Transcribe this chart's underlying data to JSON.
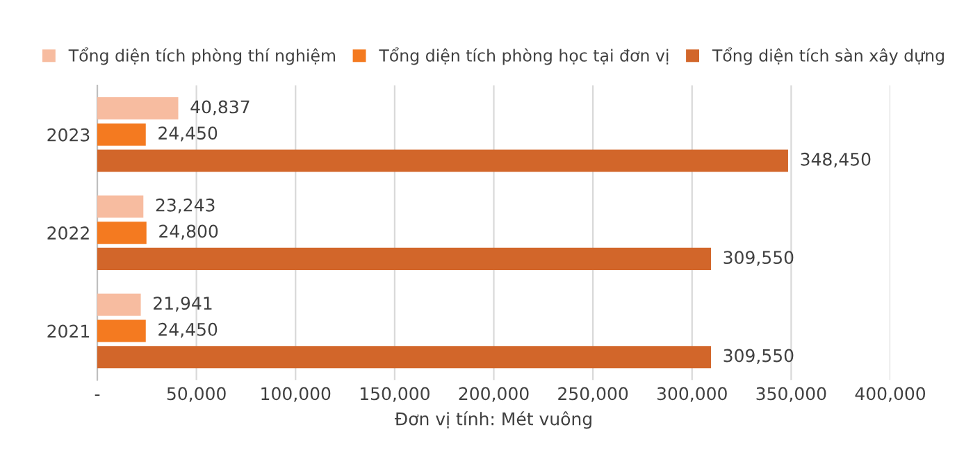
{
  "chart_data": {
    "type": "bar",
    "orientation": "horizontal",
    "xlabel": "Đơn vị tính: Mét vuông",
    "categories": [
      "2023",
      "2022",
      "2021"
    ],
    "series": [
      {
        "name": "Tổng diện tích phòng thí nghiệm",
        "color": "#f7bca0",
        "values": [
          40837,
          23243,
          21941
        ],
        "value_labels": [
          "40,837",
          "23,243",
          "21,941"
        ]
      },
      {
        "name": "Tổng diện tích phòng học tại đơn vị",
        "color": "#f47a20",
        "values": [
          24450,
          24800,
          24450
        ],
        "value_labels": [
          "24,450",
          "24,800",
          "24,450"
        ]
      },
      {
        "name": "Tổng diện tích sàn xây dựng",
        "color": "#d2662a",
        "values": [
          348450,
          309550,
          309550
        ],
        "value_labels": [
          "348,450",
          "309,550",
          "309,550"
        ]
      }
    ],
    "xlim": [
      0,
      400000
    ],
    "xticks": [
      {
        "value": 0,
        "label": "-"
      },
      {
        "value": 50000,
        "label": "50,000"
      },
      {
        "value": 100000,
        "label": "100,000"
      },
      {
        "value": 150000,
        "label": "150,000"
      },
      {
        "value": 200000,
        "label": "200,000"
      },
      {
        "value": 250000,
        "label": "250,000"
      },
      {
        "value": 300000,
        "label": "300,000"
      },
      {
        "value": 350000,
        "label": "350,000"
      },
      {
        "value": 400000,
        "label": "400,000"
      }
    ],
    "grid": "x",
    "legend": "top"
  }
}
